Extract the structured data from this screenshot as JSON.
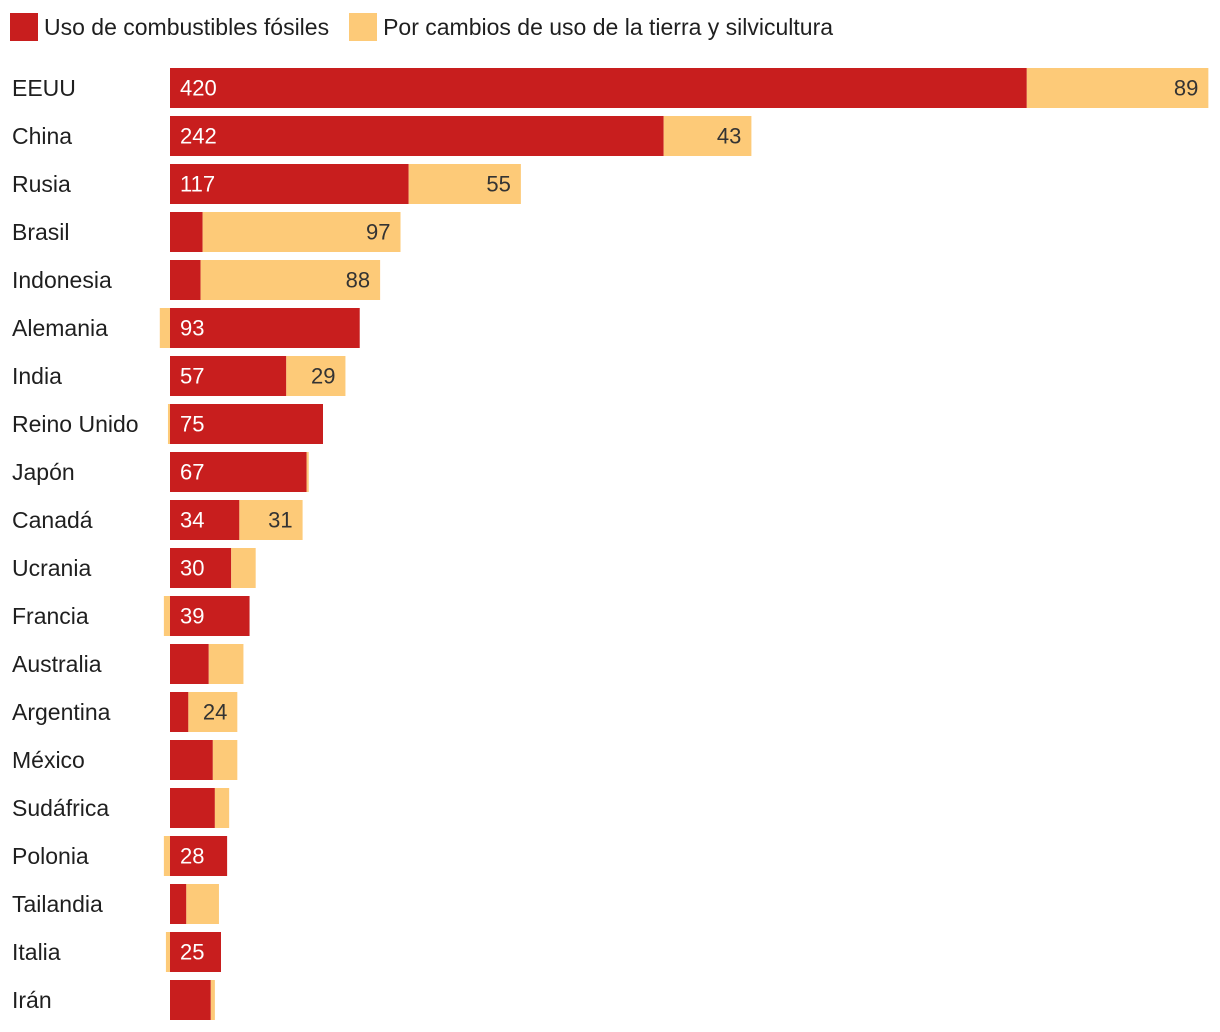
{
  "colors": {
    "fossil": "#C81E1E",
    "landuse": "#FDCA78",
    "label_on_fossil": "#FFFFFF",
    "label_on_landuse": "#333333"
  },
  "legend": {
    "fossil_label": "Uso de combustibles fósiles",
    "landuse_label": "Por cambios de uso de la tierra y silvicultura"
  },
  "chart_data": {
    "type": "bar",
    "orientation": "horizontal",
    "stacked": true,
    "xlim": [
      -12,
      600
    ],
    "categories": [
      "EEUU",
      "China",
      "Rusia",
      "Brasil",
      "Indonesia",
      "Alemania",
      "India",
      "Reino Unido",
      "Japón",
      "Canadá",
      "Ucrania",
      "Francia",
      "Australia",
      "Argentina",
      "México",
      "Sudáfrica",
      "Polonia",
      "Tailandia",
      "Italia",
      "Irán"
    ],
    "series": [
      {
        "name": "Uso de combustibles fósiles",
        "values": [
          420,
          242,
          117,
          16,
          15,
          93,
          57,
          75,
          67,
          34,
          30,
          39,
          19,
          9,
          21,
          22,
          28,
          8,
          25,
          20
        ],
        "labels": [
          "420",
          "242",
          "117",
          "",
          "",
          "93",
          "57",
          "75",
          "67",
          "34",
          "30",
          "39",
          "",
          "",
          "",
          "",
          "28",
          "",
          "25",
          ""
        ]
      },
      {
        "name": "Por cambios de uso de la tierra y silvicultura",
        "values": [
          89,
          43,
          55,
          97,
          88,
          -5,
          29,
          -1,
          1,
          31,
          12,
          -3,
          17,
          24,
          12,
          7,
          -3,
          16,
          -2,
          2
        ],
        "labels": [
          "89",
          "43",
          "55",
          "97",
          "88",
          "",
          "29",
          "",
          "",
          "31",
          "",
          "",
          "",
          "24",
          "",
          "",
          "",
          "",
          "",
          ""
        ]
      }
    ]
  }
}
